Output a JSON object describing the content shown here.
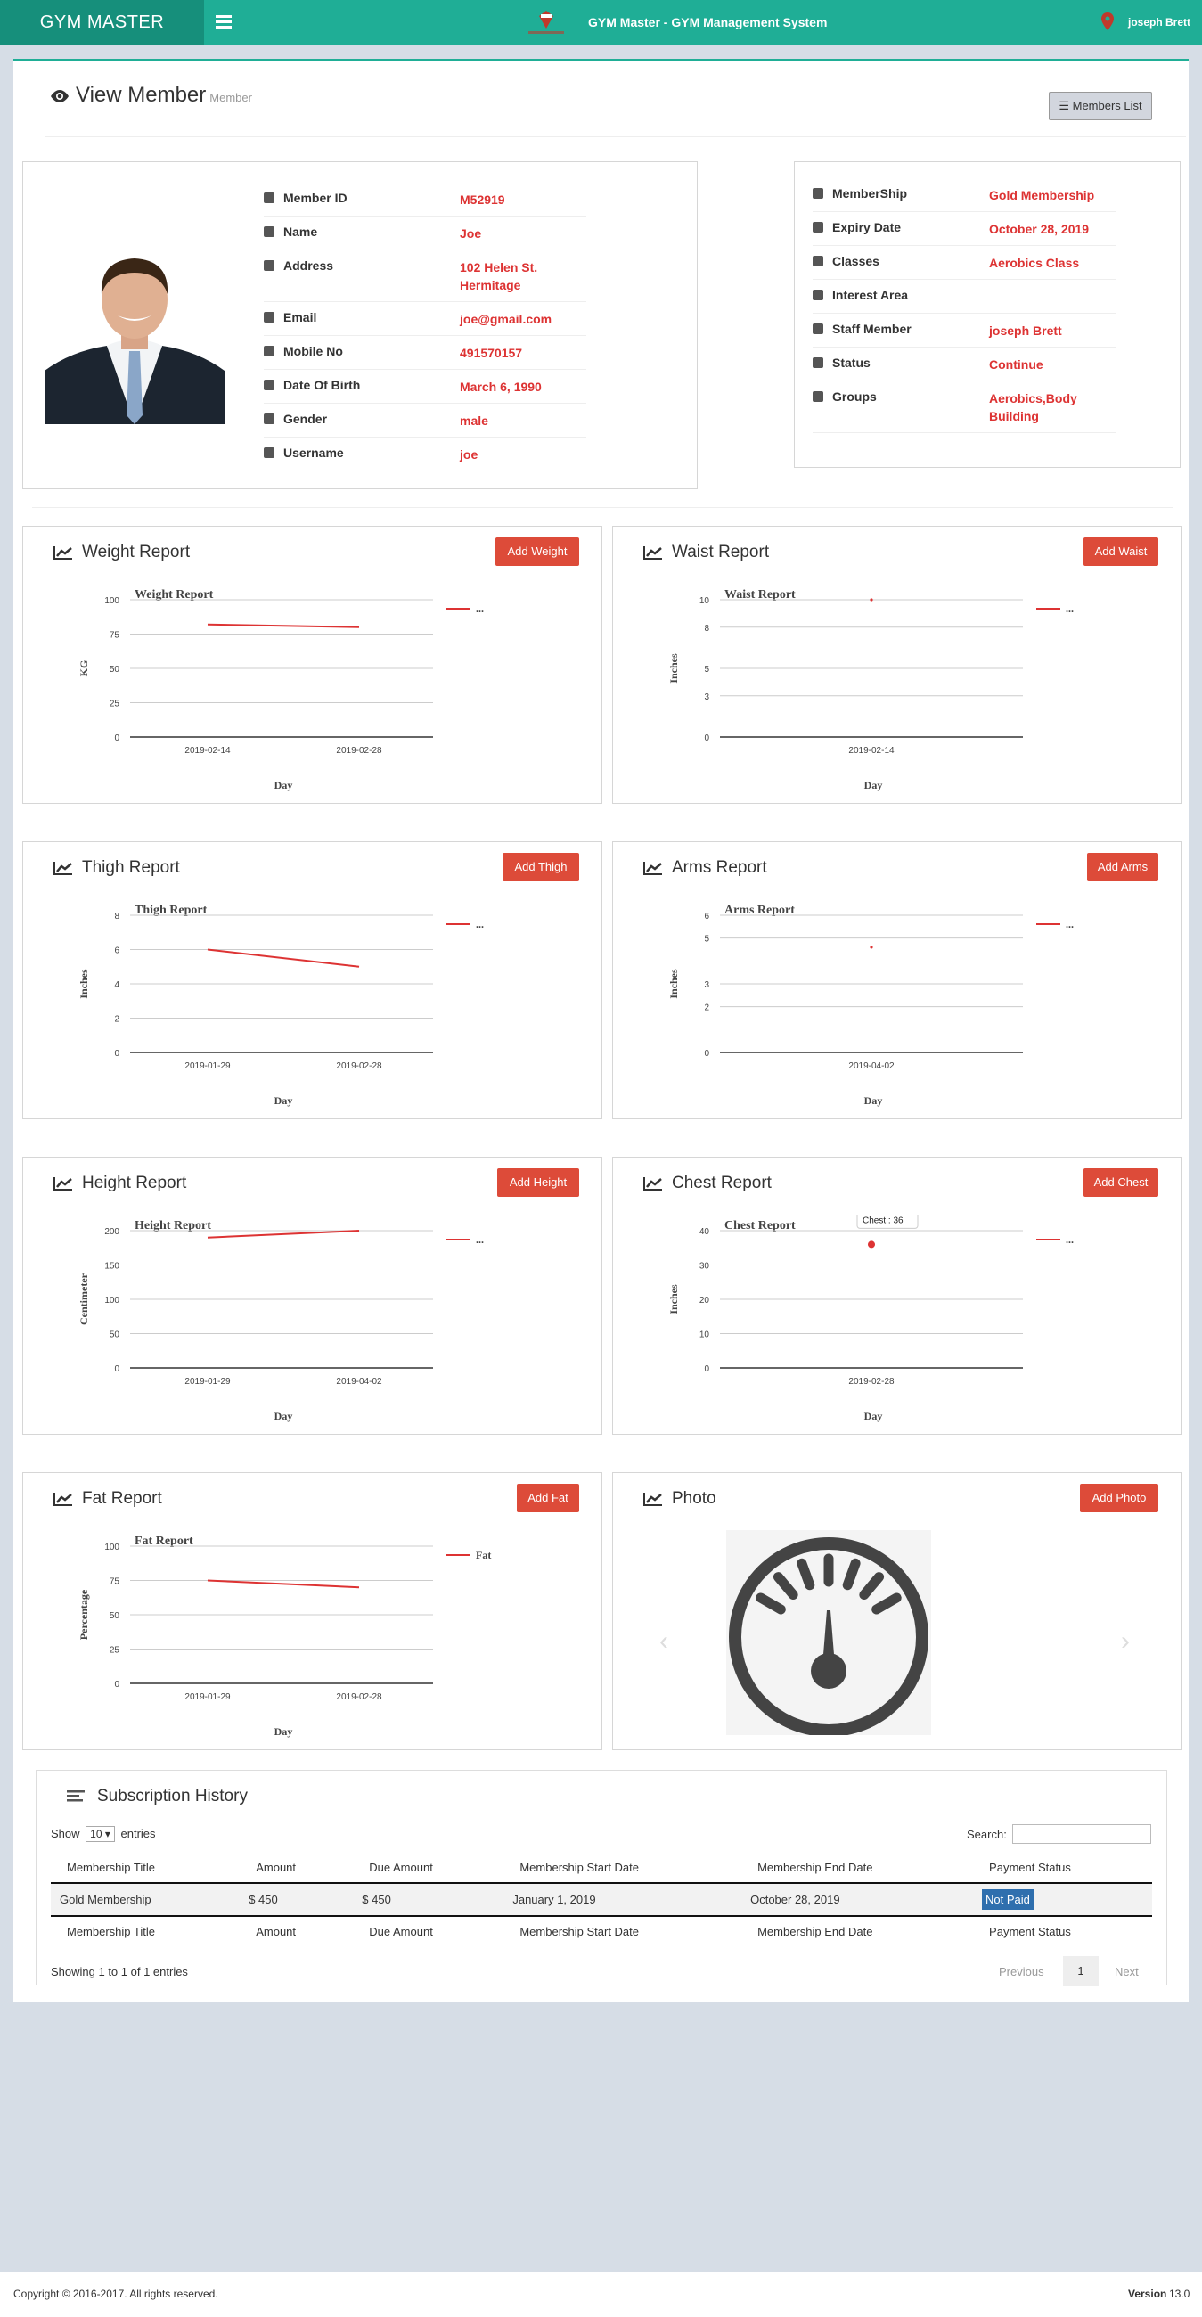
{
  "header": {
    "brand": "GYM MASTER",
    "system_title": "GYM Master - GYM Management System",
    "user": "joseph Brett"
  },
  "page": {
    "title": "View Member",
    "subtitle": "Member",
    "list_button": "Members List"
  },
  "member": {
    "rows": [
      {
        "label": "Member ID",
        "value": "M52919",
        "icon": "user-icon"
      },
      {
        "label": "Name",
        "value": "Joe",
        "icon": "user-icon"
      },
      {
        "label": "Address",
        "value": "102 Helen St.",
        "value2": "Hermitage",
        "icon": "map-marker-icon"
      },
      {
        "label": "Email",
        "value": "joe@gmail.com",
        "icon": "envelope-icon"
      },
      {
        "label": "Mobile No",
        "value": "491570157",
        "icon": "phone-icon"
      },
      {
        "label": "Date Of Birth",
        "value": "March 6, 1990",
        "icon": "calendar-icon"
      },
      {
        "label": "Gender",
        "value": "male",
        "icon": "male-icon"
      },
      {
        "label": "Username",
        "value": "joe",
        "icon": "user-icon"
      }
    ],
    "membership_rows": [
      {
        "label": "MemberShip",
        "value": "Gold Membership",
        "icon": "users-icon"
      },
      {
        "label": "Expiry Date",
        "value": "October 28, 2019",
        "icon": "calendar-icon"
      },
      {
        "label": "Classes",
        "value": "Aerobics Class",
        "icon": "graduation-cap-icon"
      },
      {
        "label": "Interest Area",
        "value": "",
        "icon": "heart-icon"
      },
      {
        "label": "Staff Member",
        "value": "joseph Brett",
        "icon": "user-icon"
      },
      {
        "label": "Status",
        "value": "Continue",
        "icon": "power-icon"
      },
      {
        "label": "Groups",
        "value": "Aerobics,Body",
        "value2": "Building",
        "icon": "map-marker-icon"
      }
    ]
  },
  "panels": {
    "weight": {
      "title": "Weight Report",
      "button": "Add Weight"
    },
    "waist": {
      "title": "Waist Report",
      "button": "Add Waist"
    },
    "thigh": {
      "title": "Thigh Report",
      "button": "Add Thigh"
    },
    "arms": {
      "title": "Arms Report",
      "button": "Add Arms"
    },
    "height": {
      "title": "Height Report",
      "button": "Add Height"
    },
    "chest": {
      "title": "Chest Report",
      "button": "Add Chest"
    },
    "fat": {
      "title": "Fat Report",
      "button": "Add Fat"
    },
    "photo": {
      "title": "Photo",
      "button": "Add Photo"
    }
  },
  "chart_data": [
    {
      "id": "weight",
      "type": "line",
      "title": "Weight Report",
      "xlabel": "Day",
      "ylabel": "KG",
      "ylim": [
        0,
        100
      ],
      "yticks": [
        0,
        25,
        50,
        75,
        100
      ],
      "x": [
        "2019-02-14",
        "2019-02-28"
      ],
      "series": [
        {
          "name": "...",
          "values": [
            82,
            80
          ]
        }
      ],
      "color": "#dd3333"
    },
    {
      "id": "waist",
      "type": "line",
      "title": "Waist Report",
      "xlabel": "Day",
      "ylabel": "Inches",
      "ylim": [
        0,
        10
      ],
      "yticks": [
        0,
        3,
        5,
        8,
        10
      ],
      "x": [
        "2019-02-14"
      ],
      "series": [
        {
          "name": "...",
          "values": [
            10
          ]
        }
      ],
      "color": "#dd3333"
    },
    {
      "id": "thigh",
      "type": "line",
      "title": "Thigh Report",
      "xlabel": "Day",
      "ylabel": "Inches",
      "ylim": [
        0,
        8
      ],
      "yticks": [
        0,
        2,
        4,
        6,
        8
      ],
      "x": [
        "2019-01-29",
        "2019-02-28"
      ],
      "series": [
        {
          "name": "...",
          "values": [
            6,
            5
          ]
        }
      ],
      "color": "#dd3333"
    },
    {
      "id": "arms",
      "type": "line",
      "title": "Arms Report",
      "xlabel": "Day",
      "ylabel": "Inches",
      "ylim": [
        0,
        6
      ],
      "yticks": [
        0,
        2,
        3,
        5,
        6
      ],
      "x": [
        "2019-04-02"
      ],
      "series": [
        {
          "name": "...",
          "values": [
            4.6
          ]
        }
      ],
      "color": "#dd3333"
    },
    {
      "id": "height",
      "type": "line",
      "title": "Height Report",
      "xlabel": "Day",
      "ylabel": "Centimeter",
      "ylim": [
        0,
        200
      ],
      "yticks": [
        0,
        50,
        100,
        150,
        200
      ],
      "x": [
        "2019-01-29",
        "2019-04-02"
      ],
      "series": [
        {
          "name": "...",
          "values": [
            190,
            200
          ]
        }
      ],
      "color": "#dd3333"
    },
    {
      "id": "chest",
      "type": "line",
      "title": "Chest Report",
      "xlabel": "Day",
      "ylabel": "Inches",
      "ylim": [
        0,
        40
      ],
      "yticks": [
        0,
        10,
        20,
        30,
        40
      ],
      "x": [
        "2019-02-28"
      ],
      "series": [
        {
          "name": "...",
          "values": [
            36
          ]
        }
      ],
      "color": "#dd3333",
      "tooltip": {
        "date": "2019-02-28",
        "label": "Chest",
        "value": "36"
      }
    },
    {
      "id": "fat",
      "type": "line",
      "title": "Fat Report",
      "xlabel": "Day",
      "ylabel": "Percentage",
      "ylim": [
        0,
        100
      ],
      "yticks": [
        0,
        25,
        50,
        75,
        100
      ],
      "x": [
        "2019-01-29",
        "2019-02-28"
      ],
      "series": [
        {
          "name": "Fat",
          "values": [
            75,
            70
          ]
        }
      ],
      "color": "#dd3333"
    }
  ],
  "subscription": {
    "title": "Subscription History",
    "show": "Show",
    "entries_value": "10",
    "entries": "entries",
    "search_label": "Search:",
    "columns": [
      "Membership Title",
      "Amount",
      "Due Amount",
      "Membership Start Date",
      "Membership End Date",
      "Payment Status"
    ],
    "rows": [
      [
        "Gold Membership",
        "$ 450",
        "$ 450",
        "January 1, 2019",
        "October 28, 2019",
        "Not Paid"
      ]
    ],
    "info": "Showing 1 to 1 of 1 entries",
    "prev": "Previous",
    "page": "1",
    "next": "Next"
  },
  "footer": {
    "copyright": "Copyright © 2016-2017. All rights reserved.",
    "version_label": "Version",
    "version": "13.0"
  }
}
